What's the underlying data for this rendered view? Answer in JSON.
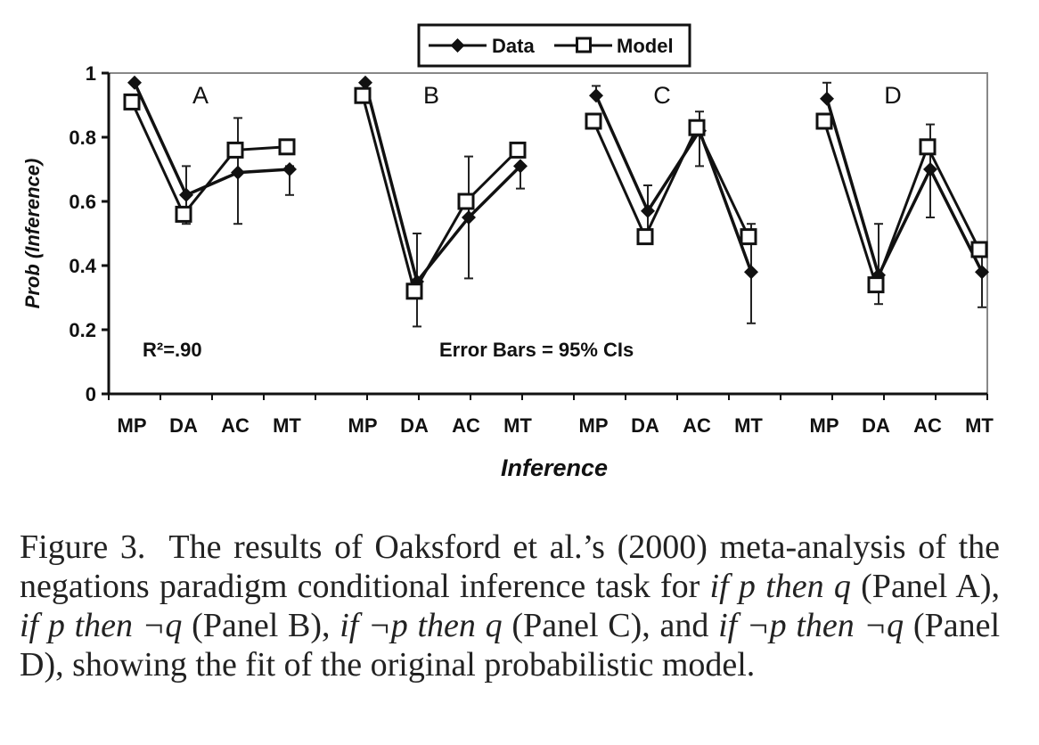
{
  "chart_data": {
    "type": "line",
    "ylabel": "Prob (Inference)",
    "xlabel": "Inference",
    "ylim": [
      0,
      1
    ],
    "yticks": [
      "0",
      "0.2",
      "0.4",
      "0.6",
      "0.8",
      "1"
    ],
    "categories": [
      "MP",
      "DA",
      "AC",
      "MT"
    ],
    "legend": {
      "placement": "top-center",
      "entries": [
        "Data",
        "Model"
      ]
    },
    "annotations": {
      "r2": "R²=.90",
      "error_bars": "Error Bars = 95% CIs"
    },
    "panels": [
      {
        "label": "A",
        "series": [
          {
            "name": "Data",
            "values": [
              0.97,
              0.62,
              0.69,
              0.7
            ],
            "ci_low": [
              0.97,
              0.53,
              0.53,
              0.62
            ],
            "ci_high": [
              0.97,
              0.71,
              0.86,
              0.71
            ]
          },
          {
            "name": "Model",
            "values": [
              0.91,
              0.56,
              0.76,
              0.77
            ]
          }
        ]
      },
      {
        "label": "B",
        "series": [
          {
            "name": "Data",
            "values": [
              0.97,
              0.35,
              0.55,
              0.71
            ],
            "ci_low": [
              0.97,
              0.21,
              0.36,
              0.64
            ],
            "ci_high": [
              0.97,
              0.5,
              0.74,
              0.71
            ]
          },
          {
            "name": "Model",
            "values": [
              0.93,
              0.32,
              0.6,
              0.76
            ]
          }
        ]
      },
      {
        "label": "C",
        "series": [
          {
            "name": "Data",
            "values": [
              0.93,
              0.57,
              0.82,
              0.38
            ],
            "ci_low": [
              0.93,
              0.49,
              0.71,
              0.22
            ],
            "ci_high": [
              0.96,
              0.65,
              0.88,
              0.53
            ]
          },
          {
            "name": "Model",
            "values": [
              0.85,
              0.49,
              0.83,
              0.49
            ]
          }
        ]
      },
      {
        "label": "D",
        "series": [
          {
            "name": "Data",
            "values": [
              0.92,
              0.37,
              0.7,
              0.38
            ],
            "ci_low": [
              0.92,
              0.28,
              0.55,
              0.27
            ],
            "ci_high": [
              0.97,
              0.53,
              0.84,
              0.45
            ]
          },
          {
            "name": "Model",
            "values": [
              0.85,
              0.34,
              0.77,
              0.45
            ]
          }
        ]
      }
    ]
  },
  "caption": {
    "lead": "Figure 3.",
    "p1": "The results of Oaksford et al.’s (2000) meta-analysis of the negations paradigm conditional inference task for ",
    "i1": "if p then q",
    "p2": " (Panel A), ",
    "i2": "if p then ¬q",
    "p3": " (Panel B), ",
    "i3": "if ¬p then q",
    "p4": " (Panel C), and ",
    "i4": "if ¬p then ¬q",
    "p5": " (Panel D), showing the fit of the original probabilistic model."
  }
}
